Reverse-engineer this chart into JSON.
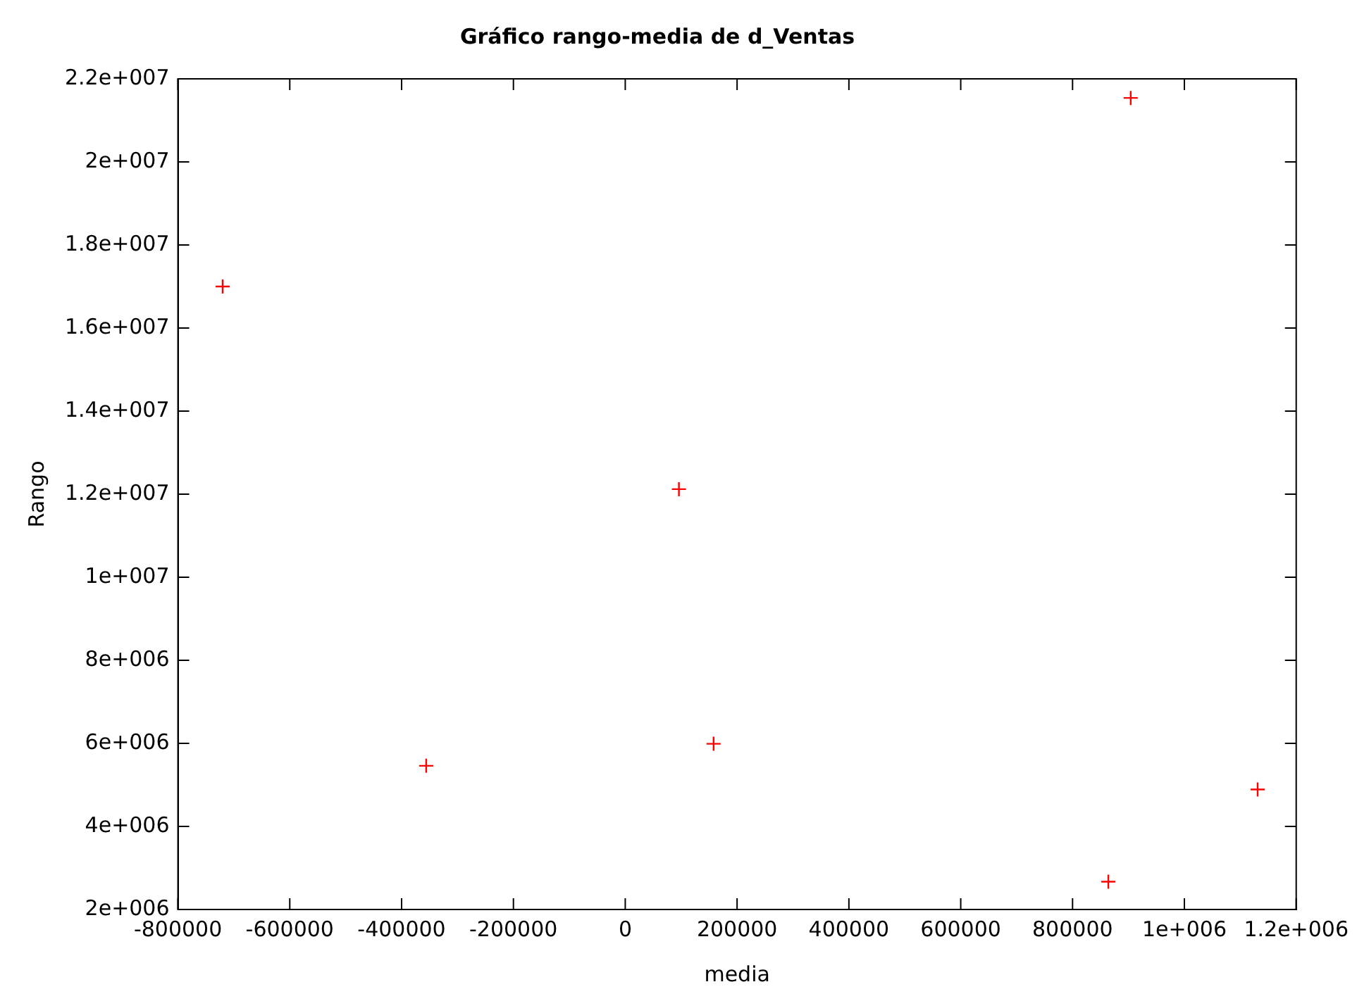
{
  "chart_data": {
    "type": "scatter",
    "title": "Gráfico rango-media de d_Ventas",
    "xlabel": "media",
    "ylabel": "Rango",
    "x": [
      -720000,
      -356000,
      96000,
      158000,
      904000,
      864000,
      1131000
    ],
    "series": [
      {
        "color": "#ff0000",
        "values": [
          17000000,
          5460000,
          12120000,
          5990000,
          21540000,
          2670000,
          4890000
        ]
      }
    ],
    "xlim": [
      -800000,
      1200000
    ],
    "xticks": [
      -800000,
      -600000,
      -400000,
      -200000,
      0,
      200000,
      400000,
      600000,
      800000,
      {
        "value": 1000000,
        "label": "1e+006"
      },
      {
        "value": 1200000,
        "label": "1.2e+006"
      }
    ],
    "ylim": [
      2000000,
      22000000
    ],
    "yticks": [
      {
        "value": 2000000,
        "label": "2e+006"
      },
      {
        "value": 4000000,
        "label": "4e+006"
      },
      {
        "value": 6000000,
        "label": "6e+006"
      },
      {
        "value": 8000000,
        "label": "8e+006"
      },
      {
        "value": 10000000,
        "label": "1e+007"
      },
      {
        "value": 12000000,
        "label": "1.2e+007"
      },
      {
        "value": 14000000,
        "label": "1.4e+007"
      },
      {
        "value": 16000000,
        "label": "1.6e+007"
      },
      {
        "value": 18000000,
        "label": "1.8e+007"
      },
      {
        "value": 20000000,
        "label": "2e+007"
      },
      {
        "value": 22000000,
        "label": "2.2e+007"
      }
    ],
    "grid": false,
    "legend": false,
    "marker": "cross"
  }
}
